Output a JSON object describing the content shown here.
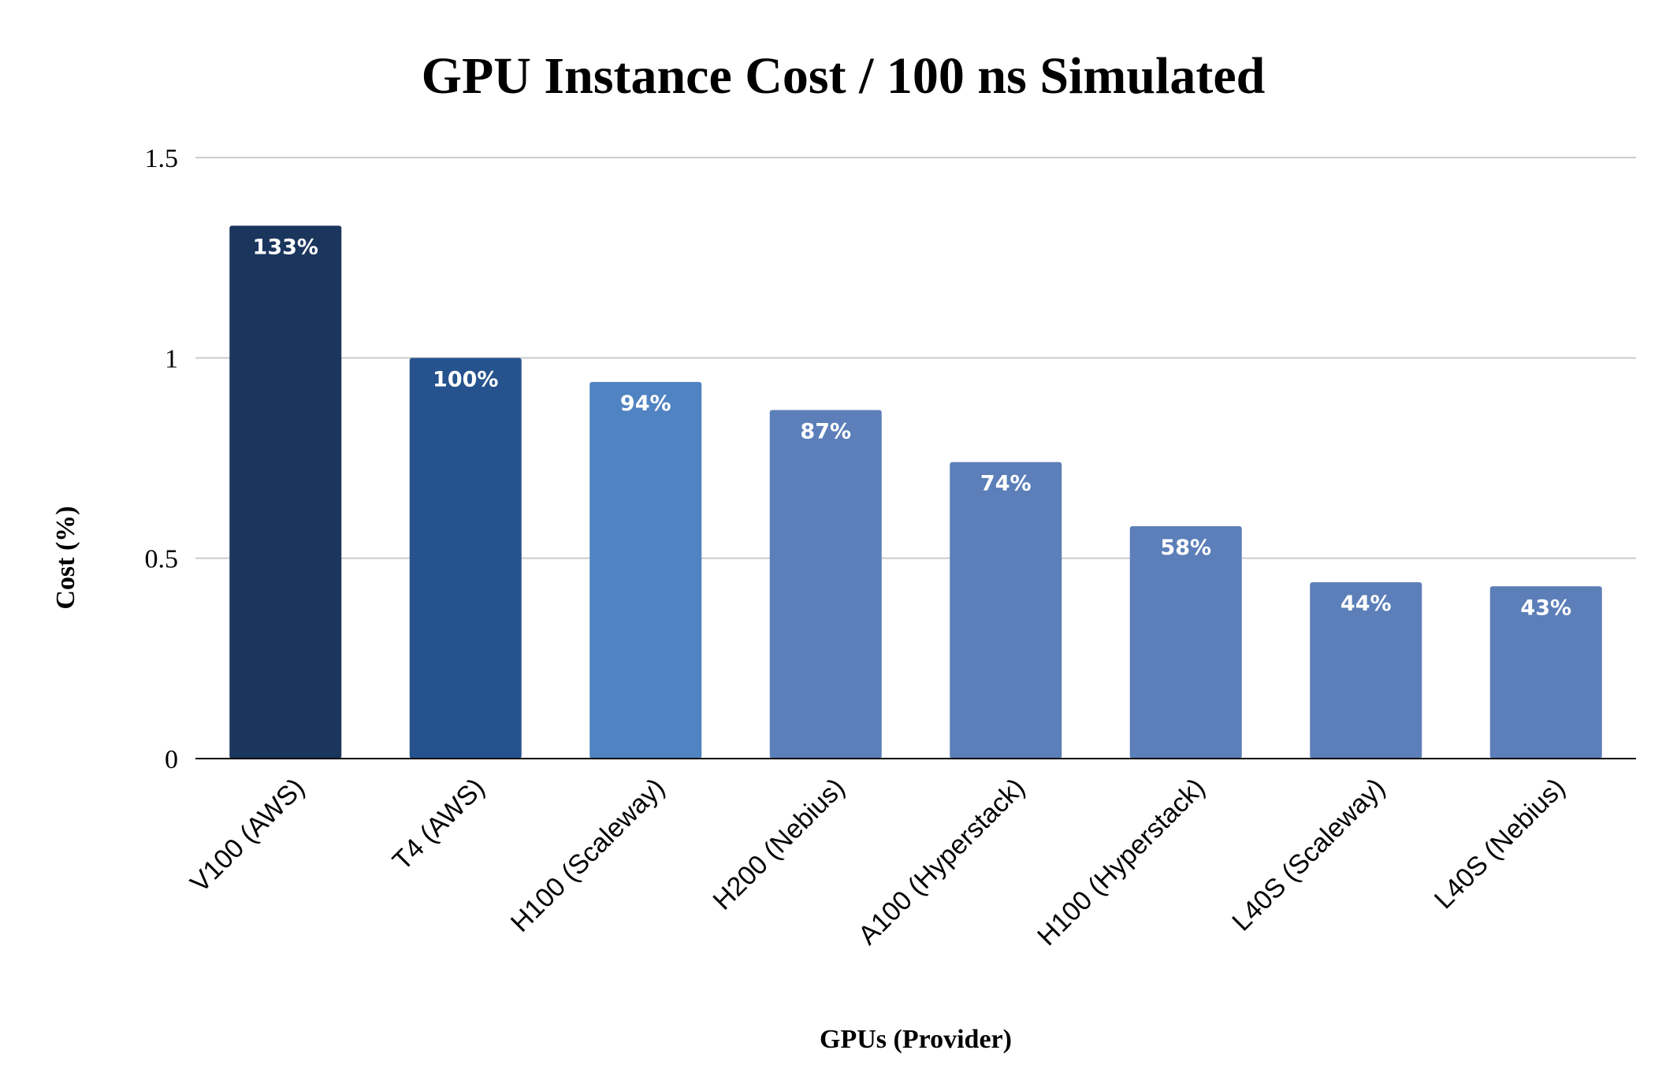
{
  "chart_data": {
    "type": "bar",
    "title": "GPU Instance Cost / 100 ns Simulated",
    "xlabel": "GPUs (Provider)",
    "ylabel": "Cost (%)",
    "ylim": [
      0,
      1.5
    ],
    "yticks": [
      "0",
      "0.5",
      "1",
      "1.5"
    ],
    "ytick_values": [
      0,
      0.5,
      1,
      1.5
    ],
    "grid": true,
    "legend": "none",
    "categories": [
      "V100 (AWS)",
      "T4 (AWS)",
      "H100 (Scaleway)",
      "H200 (Nebius)",
      "A100 (Hyperstack)",
      "H100 (Hyperstack)",
      "L40S (Scaleway)",
      "L40S (Nebius)"
    ],
    "values": [
      1.33,
      1.0,
      0.94,
      0.87,
      0.74,
      0.58,
      0.44,
      0.43
    ],
    "data_labels": [
      "133%",
      "100%",
      "94%",
      "87%",
      "74%",
      "58%",
      "44%",
      "43%"
    ],
    "colors": [
      "#1b365d",
      "#26538e",
      "#5083c1",
      "#5c7fb9",
      "#5c7fb9",
      "#5c7fb9",
      "#5c7fb9",
      "#5c7fb9"
    ],
    "gridline_color": "#cccccc",
    "axis_color": "#000000",
    "label_color": "#ffffff"
  }
}
